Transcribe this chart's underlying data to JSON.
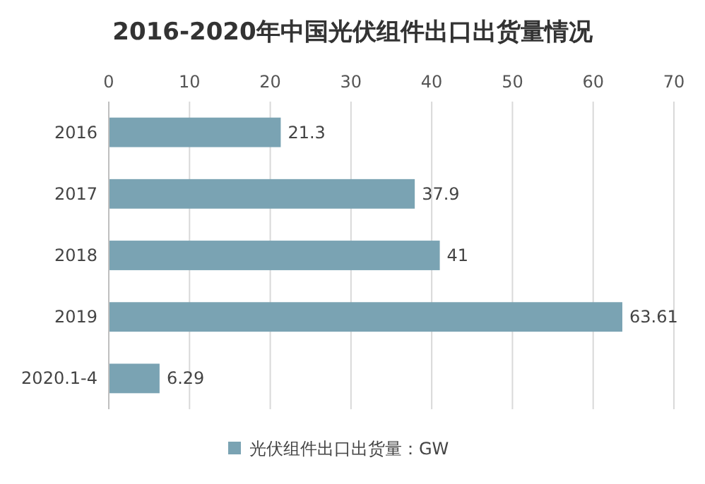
{
  "chart_data": {
    "type": "bar",
    "orientation": "horizontal",
    "title": "2016-2020年中国光伏组件出口出货量情况",
    "categories": [
      "2016",
      "2017",
      "2018",
      "2019",
      "2020.1-4"
    ],
    "series": [
      {
        "name": "光伏组件出口出货量：GW",
        "color": "#7aa3b3",
        "values": [
          21.3,
          37.9,
          41,
          63.61,
          6.29
        ]
      }
    ],
    "xlim": [
      0,
      70
    ],
    "xticks": [
      0,
      10,
      20,
      30,
      40,
      50,
      60,
      70
    ],
    "grid": "x",
    "legend": "bottom",
    "data_labels": true
  }
}
